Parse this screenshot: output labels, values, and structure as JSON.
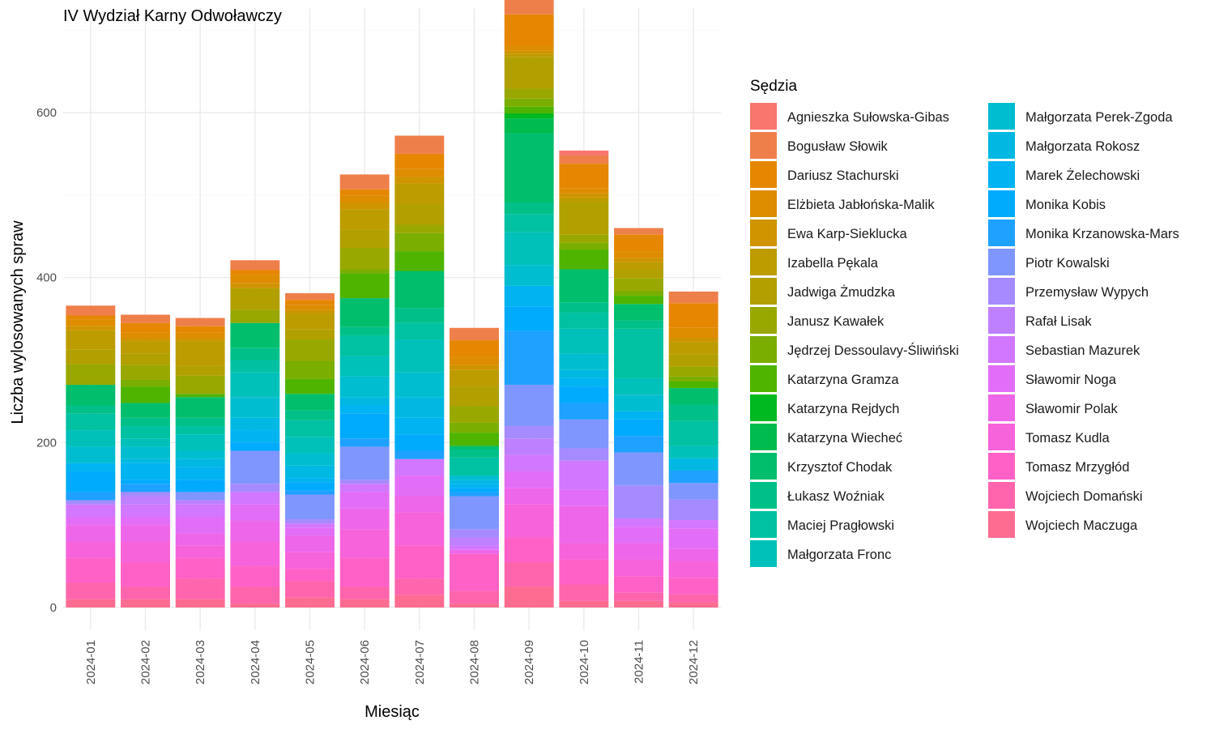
{
  "chart_data": {
    "type": "bar",
    "stacked": true,
    "title": "IV Wydział Karny Odwoławczy",
    "xlabel": "Miesiąc",
    "ylabel": "Liczba wylosowanych spraw",
    "ylim": [
      0,
      700
    ],
    "yticks": [
      0,
      200,
      400,
      600
    ],
    "grid": true,
    "legend_title": "Sędzia",
    "legend_position": "right",
    "categories": [
      "2024-01",
      "2024-02",
      "2024-03",
      "2024-04",
      "2024-05",
      "2024-06",
      "2024-07",
      "2024-08",
      "2024-09",
      "2024-10",
      "2024-11",
      "2024-12"
    ],
    "series": [
      {
        "name": "Agnieszka Sułowska-Gibas",
        "color": "#F8766D",
        "values": [
          0,
          0,
          0,
          0,
          0,
          0,
          0,
          0,
          12,
          6,
          0,
          0
        ]
      },
      {
        "name": "Bogusław Słowik",
        "color": "#EF7F4A",
        "values": [
          12,
          10,
          10,
          12,
          8,
          18,
          22,
          15,
          20,
          10,
          8,
          14
        ]
      },
      {
        "name": "Dariusz Stachurski",
        "color": "#E58700",
        "values": [
          5,
          12,
          8,
          6,
          6,
          8,
          18,
          20,
          38,
          30,
          20,
          30
        ]
      },
      {
        "name": "Elżbieta Jabłońska-Malik",
        "color": "#DE8C00",
        "values": [
          8,
          6,
          6,
          10,
          6,
          8,
          10,
          10,
          6,
          6,
          8,
          12
        ]
      },
      {
        "name": "Ewa Karp-Sieklucka",
        "color": "#CF9400",
        "values": [
          5,
          4,
          4,
          6,
          4,
          8,
          8,
          6,
          4,
          5,
          5,
          5
        ]
      },
      {
        "name": "Izabella Pękala",
        "color": "#BD9C00",
        "values": [
          23,
          15,
          30,
          0,
          20,
          25,
          25,
          20,
          4,
          5,
          10,
          15
        ]
      },
      {
        "name": "Jadwiga Żmudzka",
        "color": "#B1A000",
        "values": [
          18,
          14,
          12,
          26,
          12,
          22,
          25,
          24,
          38,
          40,
          10,
          15
        ]
      },
      {
        "name": "Janusz Kawałek",
        "color": "#99A800",
        "values": [
          25,
          18,
          22,
          16,
          26,
          26,
          10,
          20,
          12,
          10,
          15,
          12
        ]
      },
      {
        "name": "Jędrzej Dessoulavy-Śliwiński",
        "color": "#7AAE00",
        "values": [
          0,
          8,
          0,
          0,
          22,
          5,
          22,
          12,
          10,
          8,
          6,
          6
        ]
      },
      {
        "name": "Katarzyna Gramza",
        "color": "#4EB400",
        "values": [
          0,
          20,
          4,
          0,
          18,
          30,
          24,
          16,
          8,
          24,
          10,
          8
        ]
      },
      {
        "name": "Katarzyna Rejdych",
        "color": "#00B81F",
        "values": [
          0,
          0,
          0,
          0,
          0,
          0,
          0,
          0,
          6,
          0,
          0,
          0
        ]
      },
      {
        "name": "Katarzyna Wiecheć",
        "color": "#00BB4E",
        "values": [
          0,
          0,
          0,
          0,
          0,
          0,
          0,
          0,
          18,
          0,
          0,
          0
        ]
      },
      {
        "name": "Krzysztof Chodak",
        "color": "#00BE6C",
        "values": [
          25,
          18,
          25,
          30,
          20,
          35,
          45,
          4,
          84,
          40,
          20,
          20
        ]
      },
      {
        "name": "Łukasz Woźniak",
        "color": "#00C088",
        "values": [
          10,
          10,
          10,
          15,
          12,
          10,
          18,
          10,
          14,
          12,
          10,
          20
        ]
      },
      {
        "name": "Maciej Pragłowski",
        "color": "#00C1A1",
        "values": [
          20,
          15,
          10,
          15,
          20,
          25,
          20,
          22,
          22,
          20,
          60,
          30
        ]
      },
      {
        "name": "Małgorzata Fronc",
        "color": "#00C0BA",
        "values": [
          20,
          10,
          20,
          30,
          20,
          25,
          40,
          0,
          40,
          30,
          20,
          15
        ]
      },
      {
        "name": "Małgorzata Perek-Zgoda",
        "color": "#00BDD0",
        "values": [
          20,
          15,
          10,
          25,
          15,
          25,
          30,
          5,
          25,
          20,
          20,
          0
        ]
      },
      {
        "name": "Małgorzata Rokosz",
        "color": "#00B8E2",
        "values": [
          0,
          5,
          10,
          15,
          15,
          10,
          25,
          5,
          0,
          10,
          0,
          15
        ]
      },
      {
        "name": "Marek Żelechowski",
        "color": "#00B3F1",
        "values": [
          10,
          20,
          15,
          15,
          5,
          10,
          20,
          5,
          25,
          10,
          10,
          0
        ]
      },
      {
        "name": "Monika Kobis",
        "color": "#00ABFD",
        "values": [
          25,
          5,
          15,
          10,
          10,
          30,
          20,
          5,
          30,
          20,
          20,
          0
        ]
      },
      {
        "name": "Monika Krzanowska-Mars",
        "color": "#1EA1FF",
        "values": [
          10,
          10,
          0,
          0,
          5,
          10,
          10,
          5,
          65,
          20,
          20,
          15
        ]
      },
      {
        "name": "Piotr Kowalski",
        "color": "#7F96FF",
        "values": [
          0,
          0,
          10,
          40,
          30,
          40,
          0,
          40,
          50,
          35,
          40,
          20
        ]
      },
      {
        "name": "Przemysław Wypych",
        "color": "#A68AFF",
        "values": [
          5,
          5,
          0,
          10,
          5,
          5,
          0,
          10,
          15,
          15,
          40,
          25
        ]
      },
      {
        "name": "Rafał Lisak",
        "color": "#BE80FF",
        "values": [
          0,
          10,
          5,
          0,
          0,
          0,
          0,
          10,
          20,
          0,
          0,
          0
        ]
      },
      {
        "name": "Sebastian Mazurek",
        "color": "#D277FF",
        "values": [
          15,
          15,
          15,
          15,
          5,
          10,
          20,
          5,
          20,
          35,
          10,
          10
        ]
      },
      {
        "name": "Sławomir Noga",
        "color": "#E26EF7",
        "values": [
          10,
          10,
          20,
          20,
          10,
          20,
          25,
          0,
          20,
          20,
          20,
          25
        ]
      },
      {
        "name": "Sławomir Polak",
        "color": "#EE66E9",
        "values": [
          20,
          20,
          15,
          25,
          20,
          25,
          20,
          5,
          20,
          45,
          20,
          15
        ]
      },
      {
        "name": "Tomasz Kudla",
        "color": "#F763DB",
        "values": [
          20,
          25,
          15,
          30,
          20,
          35,
          40,
          0,
          40,
          20,
          20,
          20
        ]
      },
      {
        "name": "Tomasz Mrzygłód",
        "color": "#FF61C7",
        "values": [
          30,
          30,
          25,
          25,
          15,
          35,
          40,
          45,
          30,
          30,
          20,
          20
        ]
      },
      {
        "name": "Wojciech Domański",
        "color": "#FF65AC",
        "values": [
          20,
          15,
          25,
          20,
          20,
          15,
          20,
          15,
          30,
          20,
          10,
          10
        ]
      },
      {
        "name": "Wojciech Maczuga",
        "color": "#FF6C91",
        "values": [
          10,
          10,
          10,
          5,
          12,
          10,
          15,
          5,
          25,
          8,
          8,
          6
        ]
      }
    ]
  }
}
